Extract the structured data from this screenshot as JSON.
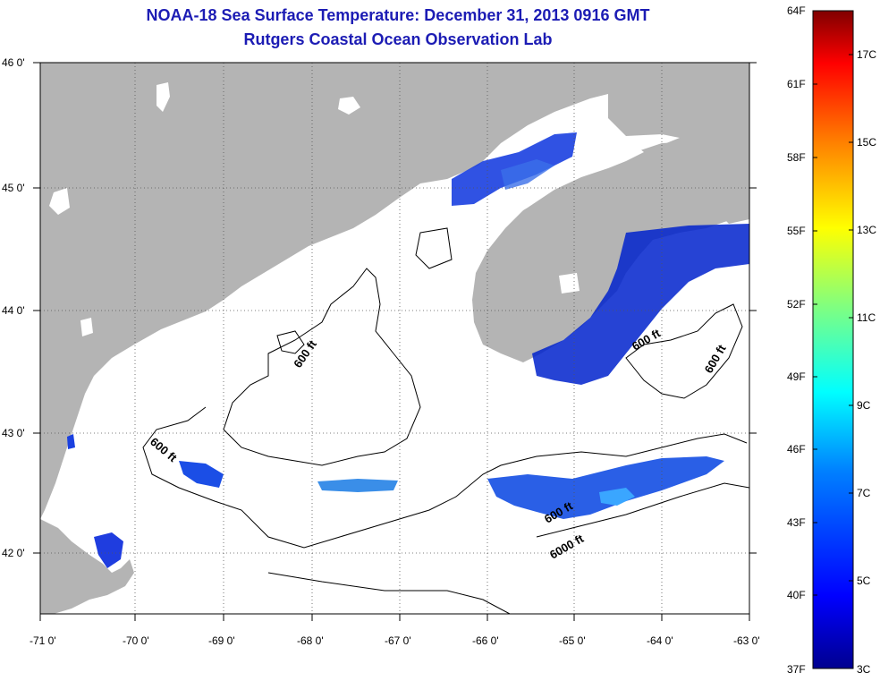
{
  "header": {
    "title": "NOAA-18 Sea Surface Temperature:  December 31, 2013 0916 GMT",
    "subtitle": "Rutgers Coastal Ocean Observation Lab"
  },
  "map": {
    "lat_labels": [
      "46 0'",
      "45 0'",
      "44 0'",
      "43 0'",
      "42 0'"
    ],
    "lon_labels": [
      "-71 0'",
      "-70 0'",
      "-69 0'",
      "-68 0'",
      "-67 0'",
      "-66 0'",
      "-65 0'",
      "-64 0'",
      "-63 0'"
    ],
    "contour_labels": [
      "600 ft",
      "600 ft",
      "600 ft",
      "600 ft",
      "600 ft",
      "6000 ft"
    ],
    "colors": {
      "land": "#b4b4b4",
      "water": "#ffffff",
      "contour": "#000000",
      "gridline": "#555555"
    }
  },
  "colorbar": {
    "fahrenheit_labels": [
      "64F",
      "61F",
      "58F",
      "55F",
      "52F",
      "49F",
      "46F",
      "43F",
      "40F",
      "37F"
    ],
    "celsius_labels": [
      "17C",
      "15C",
      "13C",
      "11C",
      "9C",
      "7C",
      "5C",
      "3C"
    ],
    "colormap": [
      "#00008f",
      "#0000ff",
      "#0080ff",
      "#00ffff",
      "#80ff80",
      "#ffff00",
      "#ff8000",
      "#ff0000",
      "#800000"
    ]
  }
}
